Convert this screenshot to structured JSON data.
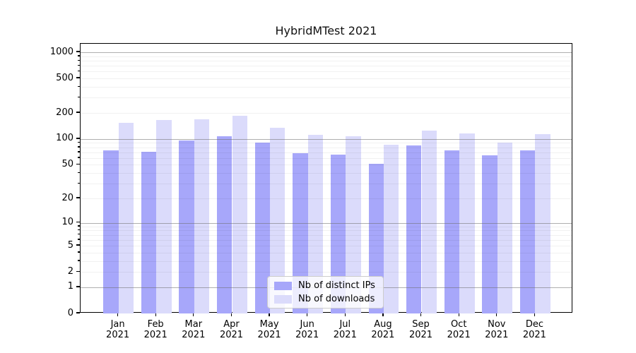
{
  "chart_data": {
    "type": "bar",
    "title": "HybridMTest 2021",
    "categories": [
      "Jan",
      "Feb",
      "Mar",
      "Apr",
      "May",
      "Jun",
      "Jul",
      "Aug",
      "Sep",
      "Oct",
      "Nov",
      "Dec"
    ],
    "category_year": "2021",
    "series": [
      {
        "name": "Nb of distinct IPs",
        "color": "#a7a7fa",
        "values": [
          74,
          71,
          97,
          108,
          91,
          68,
          66,
          51,
          84,
          74,
          65,
          74
        ]
      },
      {
        "name": "Nb of downloads",
        "color": "#dbdbfb",
        "values": [
          154,
          166,
          170,
          185,
          134,
          112,
          108,
          86,
          124,
          116,
          91,
          114
        ]
      }
    ],
    "yticks": [
      0,
      1,
      2,
      5,
      10,
      20,
      50,
      100,
      200,
      500,
      1000
    ],
    "yscale": "log1p",
    "ylim": [
      0,
      1252
    ],
    "xlabel": "",
    "ylabel": "",
    "grid": "on",
    "grid_major_ticks": [
      1,
      10,
      100,
      1000
    ],
    "legend_position": "lower center",
    "background_color": "#ffffff",
    "axis_color": "#000000"
  }
}
